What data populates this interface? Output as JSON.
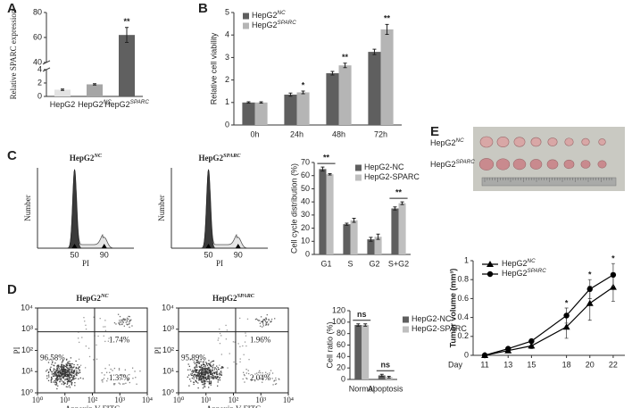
{
  "chart_data": [
    {
      "panel": "A",
      "type": "bar",
      "ylabel": "Relative SPARC expression",
      "categories": [
        "HepG2",
        "HepG2",
        "HepG2"
      ],
      "category_superscripts": [
        null,
        "NC",
        "SPARC"
      ],
      "values": [
        1,
        1.8,
        62
      ],
      "errors": [
        0.1,
        0.1,
        6
      ],
      "colors": [
        "#e3e3e3",
        "#a6a6a6",
        "#606060"
      ],
      "ylim": [
        0,
        80
      ],
      "y_break": [
        4,
        40
      ],
      "yticks": [
        0,
        2,
        4,
        40,
        60,
        80
      ],
      "annotations": [
        null,
        null,
        "**"
      ]
    },
    {
      "panel": "B",
      "type": "bar",
      "ylabel": "Relative cell viability",
      "categories": [
        "0h",
        "24h",
        "48h",
        "72h"
      ],
      "series": [
        {
          "name": "HepG2",
          "name_sup": "NC",
          "color": "#5f5f5f",
          "values": [
            1.0,
            1.35,
            2.3,
            3.25
          ],
          "errors": [
            0.03,
            0.07,
            0.08,
            0.12
          ]
        },
        {
          "name": "HepG2",
          "name_sup": "SPARC",
          "color": "#b5b5b5",
          "values": [
            1.0,
            1.45,
            2.65,
            4.25
          ],
          "errors": [
            0.03,
            0.06,
            0.1,
            0.22
          ]
        }
      ],
      "ylim": [
        0,
        5
      ],
      "yticks": [
        0,
        1,
        2,
        3,
        4,
        5
      ],
      "legend": "upper-left",
      "annotations": [
        null,
        "*",
        "**",
        "**"
      ]
    },
    {
      "panel": "C",
      "type": "flow-histogram",
      "title": "HepG2",
      "title_sup": "NC",
      "xlabel": "PI",
      "ylabel": "Number",
      "xlim": [
        0,
        130
      ],
      "xticks": [
        50,
        90
      ]
    },
    {
      "type": "flow-histogram",
      "title": "HepG2",
      "title_sup": "SPARC",
      "xlabel": "PI",
      "ylabel": "Number",
      "xlim": [
        0,
        130
      ],
      "xticks": [
        50,
        90
      ]
    },
    {
      "type": "bar",
      "ylabel": "Cell cycle distribution (%)",
      "categories": [
        "G1",
        "S",
        "G2",
        "S+G2"
      ],
      "series": [
        {
          "name": "HepG2-NC",
          "color": "#5f5f5f",
          "values": [
            65,
            23,
            11.5,
            35
          ],
          "errors": [
            1.5,
            0.8,
            1.5,
            1.2
          ]
        },
        {
          "name": "HepG2-SPARC",
          "color": "#bfbfbf",
          "values": [
            61,
            26,
            13.5,
            39
          ],
          "errors": [
            0.5,
            1.5,
            2,
            1
          ]
        }
      ],
      "ylim": [
        0,
        70
      ],
      "yticks": [
        0,
        10,
        20,
        30,
        40,
        50,
        60,
        70
      ],
      "legend": "upper-right",
      "annotations": [
        "**",
        null,
        null,
        "**"
      ],
      "annotation_bracket": true
    },
    {
      "panel": "D",
      "type": "scatter",
      "title": "HepG2",
      "title_sup": "NC",
      "xlabel": "Annexin V-FITC",
      "ylabel": "PI",
      "xscale": "log",
      "yscale": "log",
      "xlim": [
        1,
        10000
      ],
      "ylim": [
        1,
        10000
      ],
      "xticks": [
        {
          "value": 1,
          "label": "10⁰"
        },
        {
          "value": 10,
          "label": "10¹"
        },
        {
          "value": 100,
          "label": "10²"
        },
        {
          "value": 1000,
          "label": "10³"
        },
        {
          "value": 10000,
          "label": "10⁴"
        }
      ],
      "yticks": [
        {
          "value": 1,
          "label": "10⁰"
        },
        {
          "value": 10,
          "label": "10¹"
        },
        {
          "value": 100,
          "label": "10²"
        },
        {
          "value": 1000,
          "label": "10³"
        },
        {
          "value": 10000,
          "label": "10⁴"
        }
      ],
      "values": [
        96.58,
        1.74,
        1.37
      ],
      "value_labels": [
        "96.58%",
        "1.74%",
        "1.37%"
      ],
      "quadrants": [
        "lower-left",
        "upper-right",
        "lower-right"
      ]
    },
    {
      "type": "scatter",
      "title": "HepG2",
      "title_sup": "SPARC",
      "xlabel": "Annexin V-FITC",
      "ylabel": "PI",
      "xscale": "log",
      "yscale": "log",
      "xlim": [
        1,
        10000
      ],
      "ylim": [
        1,
        10000
      ],
      "xticks": [
        {
          "value": 1,
          "label": "10⁰"
        },
        {
          "value": 10,
          "label": "10¹"
        },
        {
          "value": 100,
          "label": "10²"
        },
        {
          "value": 1000,
          "label": "10³"
        },
        {
          "value": 10000,
          "label": "10⁴"
        }
      ],
      "yticks": [
        {
          "value": 1,
          "label": "10⁰"
        },
        {
          "value": 10,
          "label": "10¹"
        },
        {
          "value": 100,
          "label": "10²"
        },
        {
          "value": 1000,
          "label": "10³"
        },
        {
          "value": 10000,
          "label": "10⁴"
        }
      ],
      "values": [
        95.89,
        1.96,
        2.04
      ],
      "value_labels": [
        "95.89%",
        "1.96%",
        "2.04%"
      ],
      "quadrants": [
        "lower-left",
        "upper-right",
        "lower-right"
      ]
    },
    {
      "type": "bar",
      "ylabel": "Cell ratio (%)",
      "categories": [
        "Normal",
        "Apoptosis"
      ],
      "series": [
        {
          "name": "HepG2-NC",
          "color": "#5f5f5f",
          "values": [
            95,
            7
          ],
          "errors": [
            2,
            2
          ]
        },
        {
          "name": "HepG2-SPARC",
          "color": "#bfbfbf",
          "values": [
            95,
            4
          ],
          "errors": [
            2,
            1.5
          ]
        }
      ],
      "ylim": [
        0,
        120
      ],
      "yticks": [
        0,
        20,
        40,
        60,
        80,
        100,
        120
      ],
      "legend": "right",
      "annotations": [
        "ns",
        "ns"
      ],
      "annotation_bracket": true
    },
    {
      "panel": "E",
      "type": "line",
      "ylabel": "Tumor volume (mm³)",
      "xlabel": "Day",
      "photo_labels": [
        "HepG2",
        "HepG2"
      ],
      "photo_label_superscripts": [
        "NC",
        "SPARC"
      ],
      "x": [
        11,
        13,
        15,
        18,
        20,
        22
      ],
      "xlim": [
        10,
        23
      ],
      "xticks": [
        11,
        13,
        15,
        18,
        20,
        22
      ],
      "series": [
        {
          "name": "HepG2",
          "name_sup": "NC",
          "color": "#000000",
          "marker": "triangle",
          "values": [
            0,
            0.05,
            0.1,
            0.3,
            0.55,
            0.72
          ],
          "errors": [
            0.01,
            0.02,
            0.03,
            0.12,
            0.18,
            0.15
          ]
        },
        {
          "name": "HepG2",
          "name_sup": "SPARC",
          "color": "#000000",
          "marker": "circle",
          "values": [
            0,
            0.07,
            0.15,
            0.42,
            0.7,
            0.85
          ],
          "errors": [
            0.01,
            0.01,
            0.02,
            0.08,
            0.1,
            0.12
          ]
        }
      ],
      "ylim": [
        0,
        1
      ],
      "yticks": [
        0,
        0.2,
        0.4,
        0.6,
        0.8,
        1
      ],
      "legend": "upper-left",
      "annotations": [
        null,
        null,
        null,
        "*",
        "*",
        "*"
      ]
    }
  ]
}
